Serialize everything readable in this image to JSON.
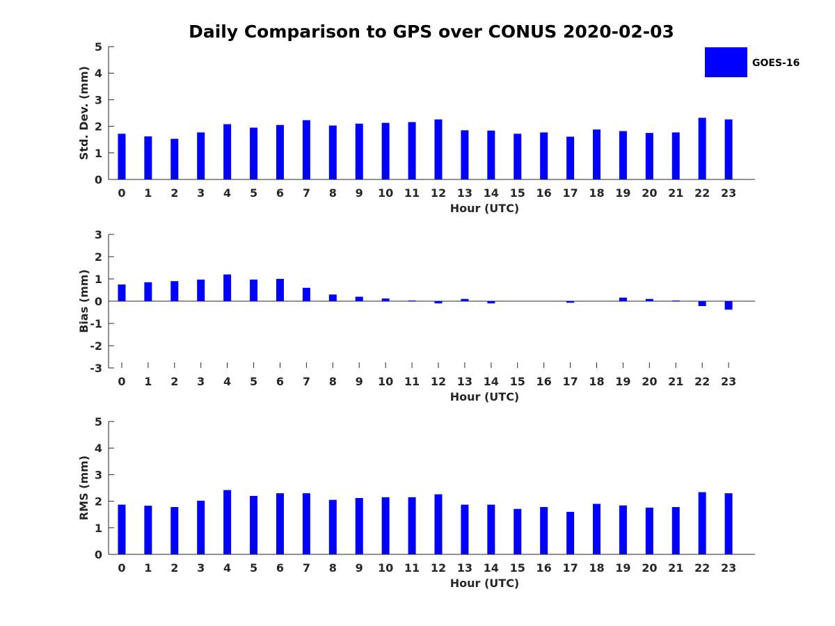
{
  "figure": {
    "title": "Daily Comparison to GPS over CONUS 2020-02-03",
    "legend": {
      "label": "GOES-16",
      "placement": "top-right",
      "color": "#0000ff"
    }
  },
  "chart_data": [
    {
      "type": "bar",
      "ylabel": "Std. Dev. (mm)",
      "xlabel": "Hour (UTC)",
      "ylim": [
        0,
        5
      ],
      "yticks": [
        0,
        1,
        2,
        3,
        4,
        5
      ],
      "categories": [
        "0",
        "1",
        "2",
        "3",
        "4",
        "5",
        "6",
        "7",
        "8",
        "9",
        "10",
        "11",
        "12",
        "13",
        "14",
        "15",
        "16",
        "17",
        "18",
        "19",
        "20",
        "21",
        "22",
        "23"
      ],
      "series": [
        {
          "name": "GOES-16",
          "color": "#0000ff",
          "values": [
            1.72,
            1.62,
            1.53,
            1.77,
            2.08,
            1.95,
            2.05,
            2.23,
            2.03,
            2.1,
            2.13,
            2.16,
            2.26,
            1.85,
            1.84,
            1.72,
            1.77,
            1.61,
            1.88,
            1.82,
            1.75,
            1.77,
            2.32,
            2.26
          ]
        }
      ],
      "grid": false
    },
    {
      "type": "bar",
      "ylabel": "Bias (mm)",
      "xlabel": "Hour (UTC)",
      "ylim": [
        -3,
        3
      ],
      "yticks": [
        -3,
        -2,
        -1,
        0,
        1,
        2,
        3
      ],
      "categories": [
        "0",
        "1",
        "2",
        "3",
        "4",
        "5",
        "6",
        "7",
        "8",
        "9",
        "10",
        "11",
        "12",
        "13",
        "14",
        "15",
        "16",
        "17",
        "18",
        "19",
        "20",
        "21",
        "22",
        "23"
      ],
      "series": [
        {
          "name": "GOES-16",
          "color": "#0000ff",
          "values": [
            0.75,
            0.85,
            0.9,
            0.97,
            1.2,
            0.97,
            1.0,
            0.6,
            0.3,
            0.2,
            0.12,
            0.03,
            -0.1,
            0.1,
            -0.1,
            0.0,
            0.0,
            -0.07,
            0.0,
            0.16,
            0.1,
            0.03,
            -0.22,
            -0.38
          ]
        }
      ],
      "grid": false
    },
    {
      "type": "bar",
      "ylabel": "RMS (mm)",
      "xlabel": "Hour (UTC)",
      "ylim": [
        0,
        5
      ],
      "yticks": [
        0,
        1,
        2,
        3,
        4,
        5
      ],
      "categories": [
        "0",
        "1",
        "2",
        "3",
        "4",
        "5",
        "6",
        "7",
        "8",
        "9",
        "10",
        "11",
        "12",
        "13",
        "14",
        "15",
        "16",
        "17",
        "18",
        "19",
        "20",
        "21",
        "22",
        "23"
      ],
      "series": [
        {
          "name": "GOES-16",
          "color": "#0000ff",
          "values": [
            1.87,
            1.83,
            1.78,
            2.02,
            2.42,
            2.2,
            2.3,
            2.3,
            2.05,
            2.12,
            2.15,
            2.15,
            2.26,
            1.87,
            1.87,
            1.71,
            1.78,
            1.6,
            1.9,
            1.84,
            1.76,
            1.78,
            2.34,
            2.3
          ]
        }
      ],
      "grid": false
    }
  ]
}
